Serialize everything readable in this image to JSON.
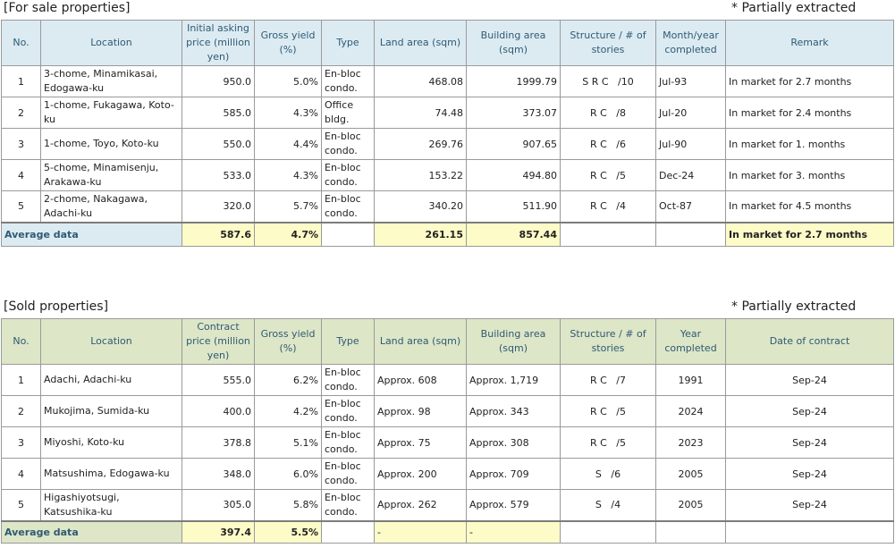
{
  "for_sale": {
    "title": "[For sale properties]",
    "note": "* Partially extracted",
    "headers": [
      "No.",
      "Location",
      "Initial asking price (million yen)",
      "Gross yield (%)",
      "Type",
      "Land area (sqm)",
      "Building area (sqm)",
      "Structure / # of stories",
      "Month/year completed",
      "Remark"
    ],
    "rows": [
      {
        "no": "1",
        "location": "3-chome, Minamikasai, Edogawa-ku",
        "price": "950.0",
        "yield": "5.0%",
        "type": "En-bloc condo.",
        "land": "468.08",
        "building": "1999.79",
        "structure": "S R C",
        "stories": "/10",
        "completed": "Jul-93",
        "remark": "In market for 2.7 months"
      },
      {
        "no": "2",
        "location": "1-chome, Fukagawa, Koto-ku",
        "price": "585.0",
        "yield": "4.3%",
        "type": "Office bldg.",
        "land": "74.48",
        "building": "373.07",
        "structure": "R C",
        "stories": "/8",
        "completed": "Jul-20",
        "remark": "In market for 2.4 months"
      },
      {
        "no": "3",
        "location": "1-chome, Toyo, Koto-ku",
        "price": "550.0",
        "yield": "4.4%",
        "type": "En-bloc condo.",
        "land": "269.76",
        "building": "907.65",
        "structure": "R C",
        "stories": "/6",
        "completed": "Jul-90",
        "remark": "In market for 1. months"
      },
      {
        "no": "4",
        "location": "5-chome, Minamisenju, Arakawa-ku",
        "price": "533.0",
        "yield": "4.3%",
        "type": "En-bloc condo.",
        "land": "153.22",
        "building": "494.80",
        "structure": "R C",
        "stories": "/5",
        "completed": "Dec-24",
        "remark": "In market for 3. months"
      },
      {
        "no": "5",
        "location": "2-chome, Nakagawa, Adachi-ku",
        "price": "320.0",
        "yield": "5.7%",
        "type": "En-bloc condo.",
        "land": "340.20",
        "building": "511.90",
        "structure": "R C",
        "stories": "/4",
        "completed": "Oct-87",
        "remark": "In market for 4.5 months"
      }
    ],
    "average": {
      "label": "Average data",
      "price": "587.6",
      "yield": "4.7%",
      "type": "",
      "land": "261.15",
      "building": "857.44",
      "structure": "",
      "completed": "",
      "remark": "In market for 2.7 months"
    }
  },
  "sold": {
    "title": "[Sold properties]",
    "note": "* Partially extracted",
    "headers": [
      "No.",
      "Location",
      "Contract price (million yen)",
      "Gross yield (%)",
      "Type",
      "Land area (sqm)",
      "Building area (sqm)",
      "Structure / # of stories",
      "Year completed",
      "Date of contract"
    ],
    "rows": [
      {
        "no": "1",
        "location": "Adachi, Adachi-ku",
        "price": "555.0",
        "yield": "6.2%",
        "type": "En-bloc condo.",
        "land": "Approx. 608",
        "building": "Approx. 1,719",
        "structure": "R C",
        "stories": "/7",
        "completed": "1991",
        "contract": "Sep-24"
      },
      {
        "no": "2",
        "location": "Mukojima, Sumida-ku",
        "price": "400.0",
        "yield": "4.2%",
        "type": "En-bloc condo.",
        "land": "Approx. 98",
        "building": "Approx. 343",
        "structure": "R C",
        "stories": "/5",
        "completed": "2024",
        "contract": "Sep-24"
      },
      {
        "no": "3",
        "location": "Miyoshi, Koto-ku",
        "price": "378.8",
        "yield": "5.1%",
        "type": "En-bloc condo.",
        "land": "Approx. 75",
        "building": "Approx. 308",
        "structure": "R C",
        "stories": "/5",
        "completed": "2023",
        "contract": "Sep-24"
      },
      {
        "no": "4",
        "location": "Matsushima, Edogawa-ku",
        "price": "348.0",
        "yield": "6.0%",
        "type": "En-bloc condo.",
        "land": "Approx. 200",
        "building": "Approx. 709",
        "structure": "S",
        "stories": "/6",
        "completed": "2005",
        "contract": "Sep-24"
      },
      {
        "no": "5",
        "location": "Higashiyotsugi, Katsushika-ku",
        "price": "305.0",
        "yield": "5.8%",
        "type": "En-bloc condo.",
        "land": "Approx. 262",
        "building": "Approx. 579",
        "structure": "S",
        "stories": "/4",
        "completed": "2005",
        "contract": "Sep-24"
      }
    ],
    "average": {
      "label": "Average data",
      "price": "397.4",
      "yield": "5.5%",
      "type": "",
      "land": "-",
      "building": "-",
      "structure": "",
      "completed": "",
      "contract": ""
    }
  }
}
